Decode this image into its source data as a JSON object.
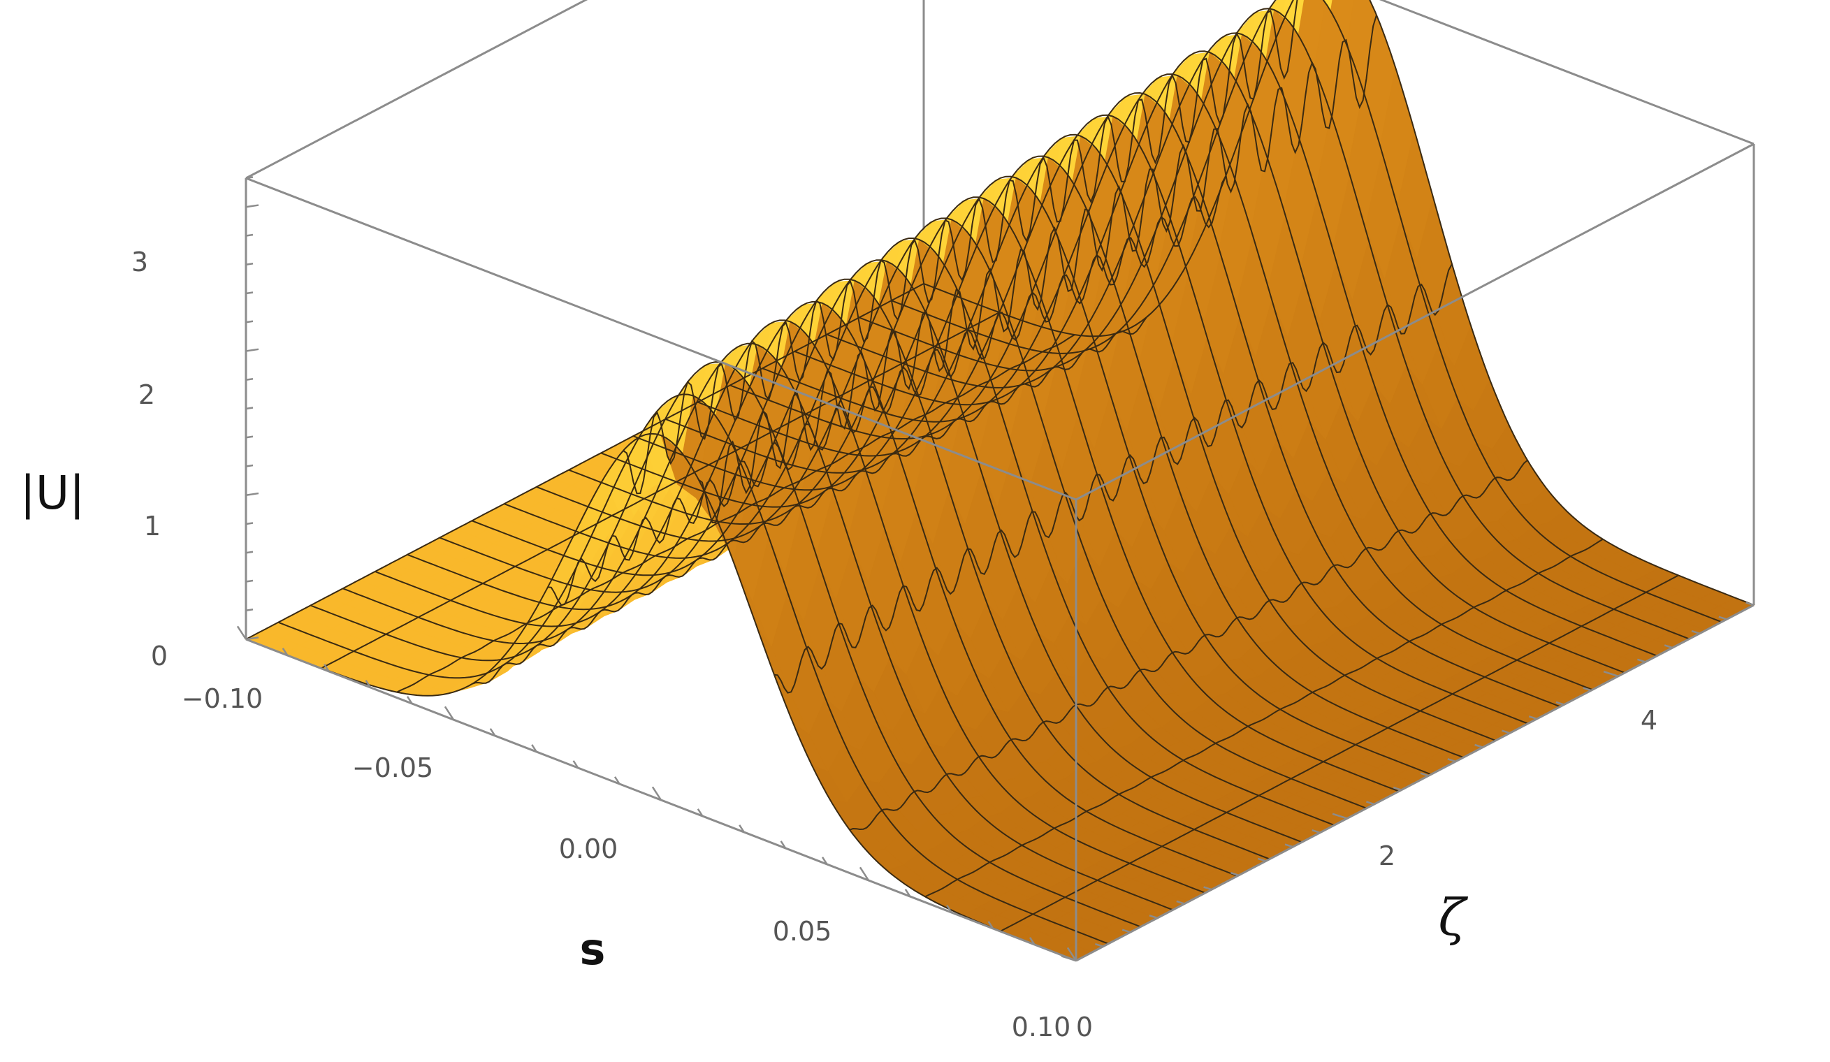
{
  "chart_data": {
    "type": "surface3d",
    "zlabel": "|U|",
    "xlabel": "s",
    "ylabel": "ζ",
    "xlim": [
      -0.1,
      0.1
    ],
    "ylim": [
      0,
      5
    ],
    "zlim": [
      0,
      3.2
    ],
    "x_ticks": [
      "−0.10",
      "−0.05",
      "0.00",
      "0.05",
      "0.10"
    ],
    "y_ticks": [
      "0",
      "2",
      "4"
    ],
    "z_ticks": [
      "0",
      "1",
      "2",
      "3"
    ],
    "surface": {
      "description_points": {
        "s": [
          -0.1,
          -0.08,
          -0.06,
          -0.04,
          -0.02,
          0.0,
          0.02,
          0.04,
          0.06,
          0.08,
          0.1
        ],
        "zeta": [
          0.0,
          0.25,
          0.5,
          0.75,
          1.0,
          1.25,
          1.5,
          1.75,
          2.0,
          2.25,
          2.5,
          2.75,
          3.0,
          3.25,
          3.5,
          3.75,
          4.0,
          4.25,
          4.5,
          4.75,
          5.0
        ],
        "peak_height_at_s0": [
          2.3,
          2.45,
          2.55,
          2.55,
          2.6,
          2.6,
          2.65,
          2.65,
          2.7,
          2.7,
          2.75,
          2.75,
          2.8,
          2.8,
          2.85,
          2.85,
          2.9,
          2.9,
          2.95,
          3.0,
          3.05
        ],
        "width_s": 0.022
      }
    },
    "colors": {
      "surface_light": "#ffd83a",
      "surface_mid": "#f5a623",
      "surface_dark": "#b5660c",
      "mesh": "#3a2a12",
      "box": "#8c8c8c"
    }
  }
}
